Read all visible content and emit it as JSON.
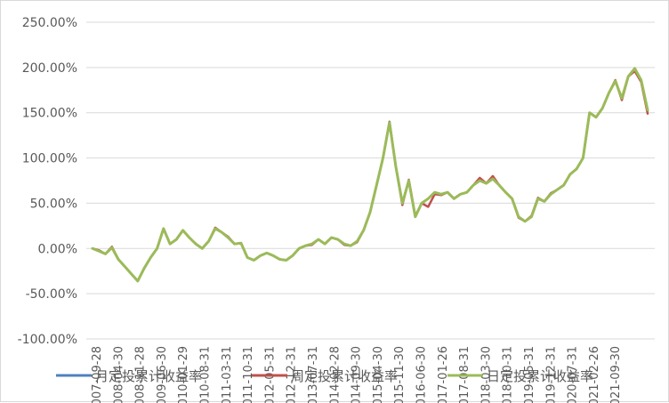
{
  "chart_data": {
    "type": "line",
    "title": "",
    "xlabel": "",
    "ylabel": "",
    "ylim": [
      -100,
      250
    ],
    "y_ticks": [
      -100,
      -50,
      0,
      50,
      100,
      150,
      200,
      250
    ],
    "y_tick_labels": [
      "-100.00%",
      "-50.00%",
      "0.00%",
      "50.00%",
      "100.00%",
      "150.00%",
      "200.00%",
      "250.00%"
    ],
    "x_tick_labels": [
      "2007-09-28",
      "2008-04-30",
      "2008-11-28",
      "2009-06-30",
      "2010-01-29",
      "2010-08-31",
      "2011-03-31",
      "2011-10-31",
      "2012-05-31",
      "2012-12-31",
      "2013-07-31",
      "2014-02-28",
      "2014-09-30",
      "2015-04-30",
      "2015-11-30",
      "2016-06-30",
      "2017-01-26",
      "2017-08-31",
      "2018-03-30",
      "2018-10-31",
      "2019-05-31",
      "2019-12-31",
      "2020-07-31",
      "2021-02-26",
      "2021-09-30"
    ],
    "grid": true,
    "legend_position": "bottom",
    "x": [
      "2007-09",
      "2007-11",
      "2008-01",
      "2008-03",
      "2008-05",
      "2008-07",
      "2008-09",
      "2008-11",
      "2009-01",
      "2009-03",
      "2009-05",
      "2009-07",
      "2009-09",
      "2009-11",
      "2010-01",
      "2010-03",
      "2010-05",
      "2010-07",
      "2010-09",
      "2010-11",
      "2011-01",
      "2011-03",
      "2011-05",
      "2011-07",
      "2011-09",
      "2011-11",
      "2012-01",
      "2012-03",
      "2012-05",
      "2012-07",
      "2012-09",
      "2012-11",
      "2013-01",
      "2013-03",
      "2013-05",
      "2013-07",
      "2013-09",
      "2013-11",
      "2014-01",
      "2014-03",
      "2014-05",
      "2014-07",
      "2014-09",
      "2014-11",
      "2015-01",
      "2015-03",
      "2015-05",
      "2015-07",
      "2015-09",
      "2015-11",
      "2016-01",
      "2016-03",
      "2016-05",
      "2016-07",
      "2016-09",
      "2016-11",
      "2017-01",
      "2017-03",
      "2017-05",
      "2017-07",
      "2017-09",
      "2017-11",
      "2018-01",
      "2018-03",
      "2018-05",
      "2018-07",
      "2018-09",
      "2018-11",
      "2019-01",
      "2019-03",
      "2019-05",
      "2019-07",
      "2019-09",
      "2019-11",
      "2020-01",
      "2020-03",
      "2020-05",
      "2020-07",
      "2020-09",
      "2020-11",
      "2021-01",
      "2021-03",
      "2021-05",
      "2021-07",
      "2021-09",
      "2021-11",
      "2022-01"
    ],
    "series": [
      {
        "name": "月定投累计收益率",
        "color": "#4f81bd",
        "values": [
          0,
          -3,
          -6,
          1,
          -12,
          -20,
          -28,
          -36,
          -22,
          -10,
          0,
          22,
          5,
          10,
          20,
          12,
          5,
          0,
          8,
          22,
          18,
          12,
          5,
          6,
          -10,
          -13,
          -8,
          -5,
          -8,
          -12,
          -13,
          -8,
          0,
          3,
          5,
          10,
          5,
          12,
          10,
          5,
          3,
          8,
          20,
          40,
          70,
          100,
          140,
          90,
          50,
          75,
          35,
          50,
          55,
          62,
          60,
          62,
          55,
          60,
          62,
          70,
          76,
          72,
          78,
          70,
          62,
          55,
          35,
          30,
          35,
          55,
          52,
          60,
          65,
          70,
          82,
          88,
          100,
          150,
          145,
          155,
          172,
          185,
          165,
          190,
          198,
          185,
          152
        ]
      },
      {
        "name": "周定投累计收益率",
        "color": "#c0504d",
        "values": [
          0,
          -2,
          -6,
          2,
          -12,
          -20,
          -28,
          -36,
          -22,
          -10,
          0,
          22,
          5,
          10,
          20,
          12,
          5,
          0,
          8,
          23,
          18,
          13,
          5,
          6,
          -10,
          -13,
          -8,
          -5,
          -8,
          -12,
          -13,
          -8,
          0,
          3,
          4,
          10,
          5,
          12,
          10,
          4,
          3,
          7,
          20,
          40,
          70,
          100,
          140,
          90,
          48,
          76,
          36,
          50,
          46,
          60,
          59,
          62,
          55,
          60,
          62,
          70,
          78,
          72,
          80,
          70,
          62,
          55,
          34,
          30,
          36,
          56,
          52,
          61,
          65,
          70,
          82,
          88,
          100,
          150,
          145,
          155,
          172,
          186,
          164,
          190,
          196,
          184,
          149
        ]
      },
      {
        "name": "日定投累计收益率",
        "color": "#9bbb59",
        "values": [
          0,
          -3,
          -6,
          1,
          -12,
          -20,
          -28,
          -36,
          -22,
          -10,
          0,
          22,
          5,
          10,
          20,
          12,
          5,
          0,
          8,
          22,
          18,
          12,
          5,
          6,
          -10,
          -13,
          -8,
          -5,
          -8,
          -12,
          -13,
          -8,
          0,
          3,
          5,
          10,
          5,
          12,
          10,
          5,
          3,
          8,
          20,
          40,
          70,
          100,
          139,
          90,
          50,
          75,
          35,
          50,
          55,
          62,
          60,
          62,
          55,
          60,
          62,
          70,
          75,
          72,
          77,
          70,
          62,
          55,
          35,
          30,
          35,
          55,
          52,
          60,
          65,
          70,
          82,
          88,
          100,
          150,
          145,
          155,
          172,
          185,
          166,
          190,
          199,
          186,
          153
        ]
      }
    ]
  }
}
